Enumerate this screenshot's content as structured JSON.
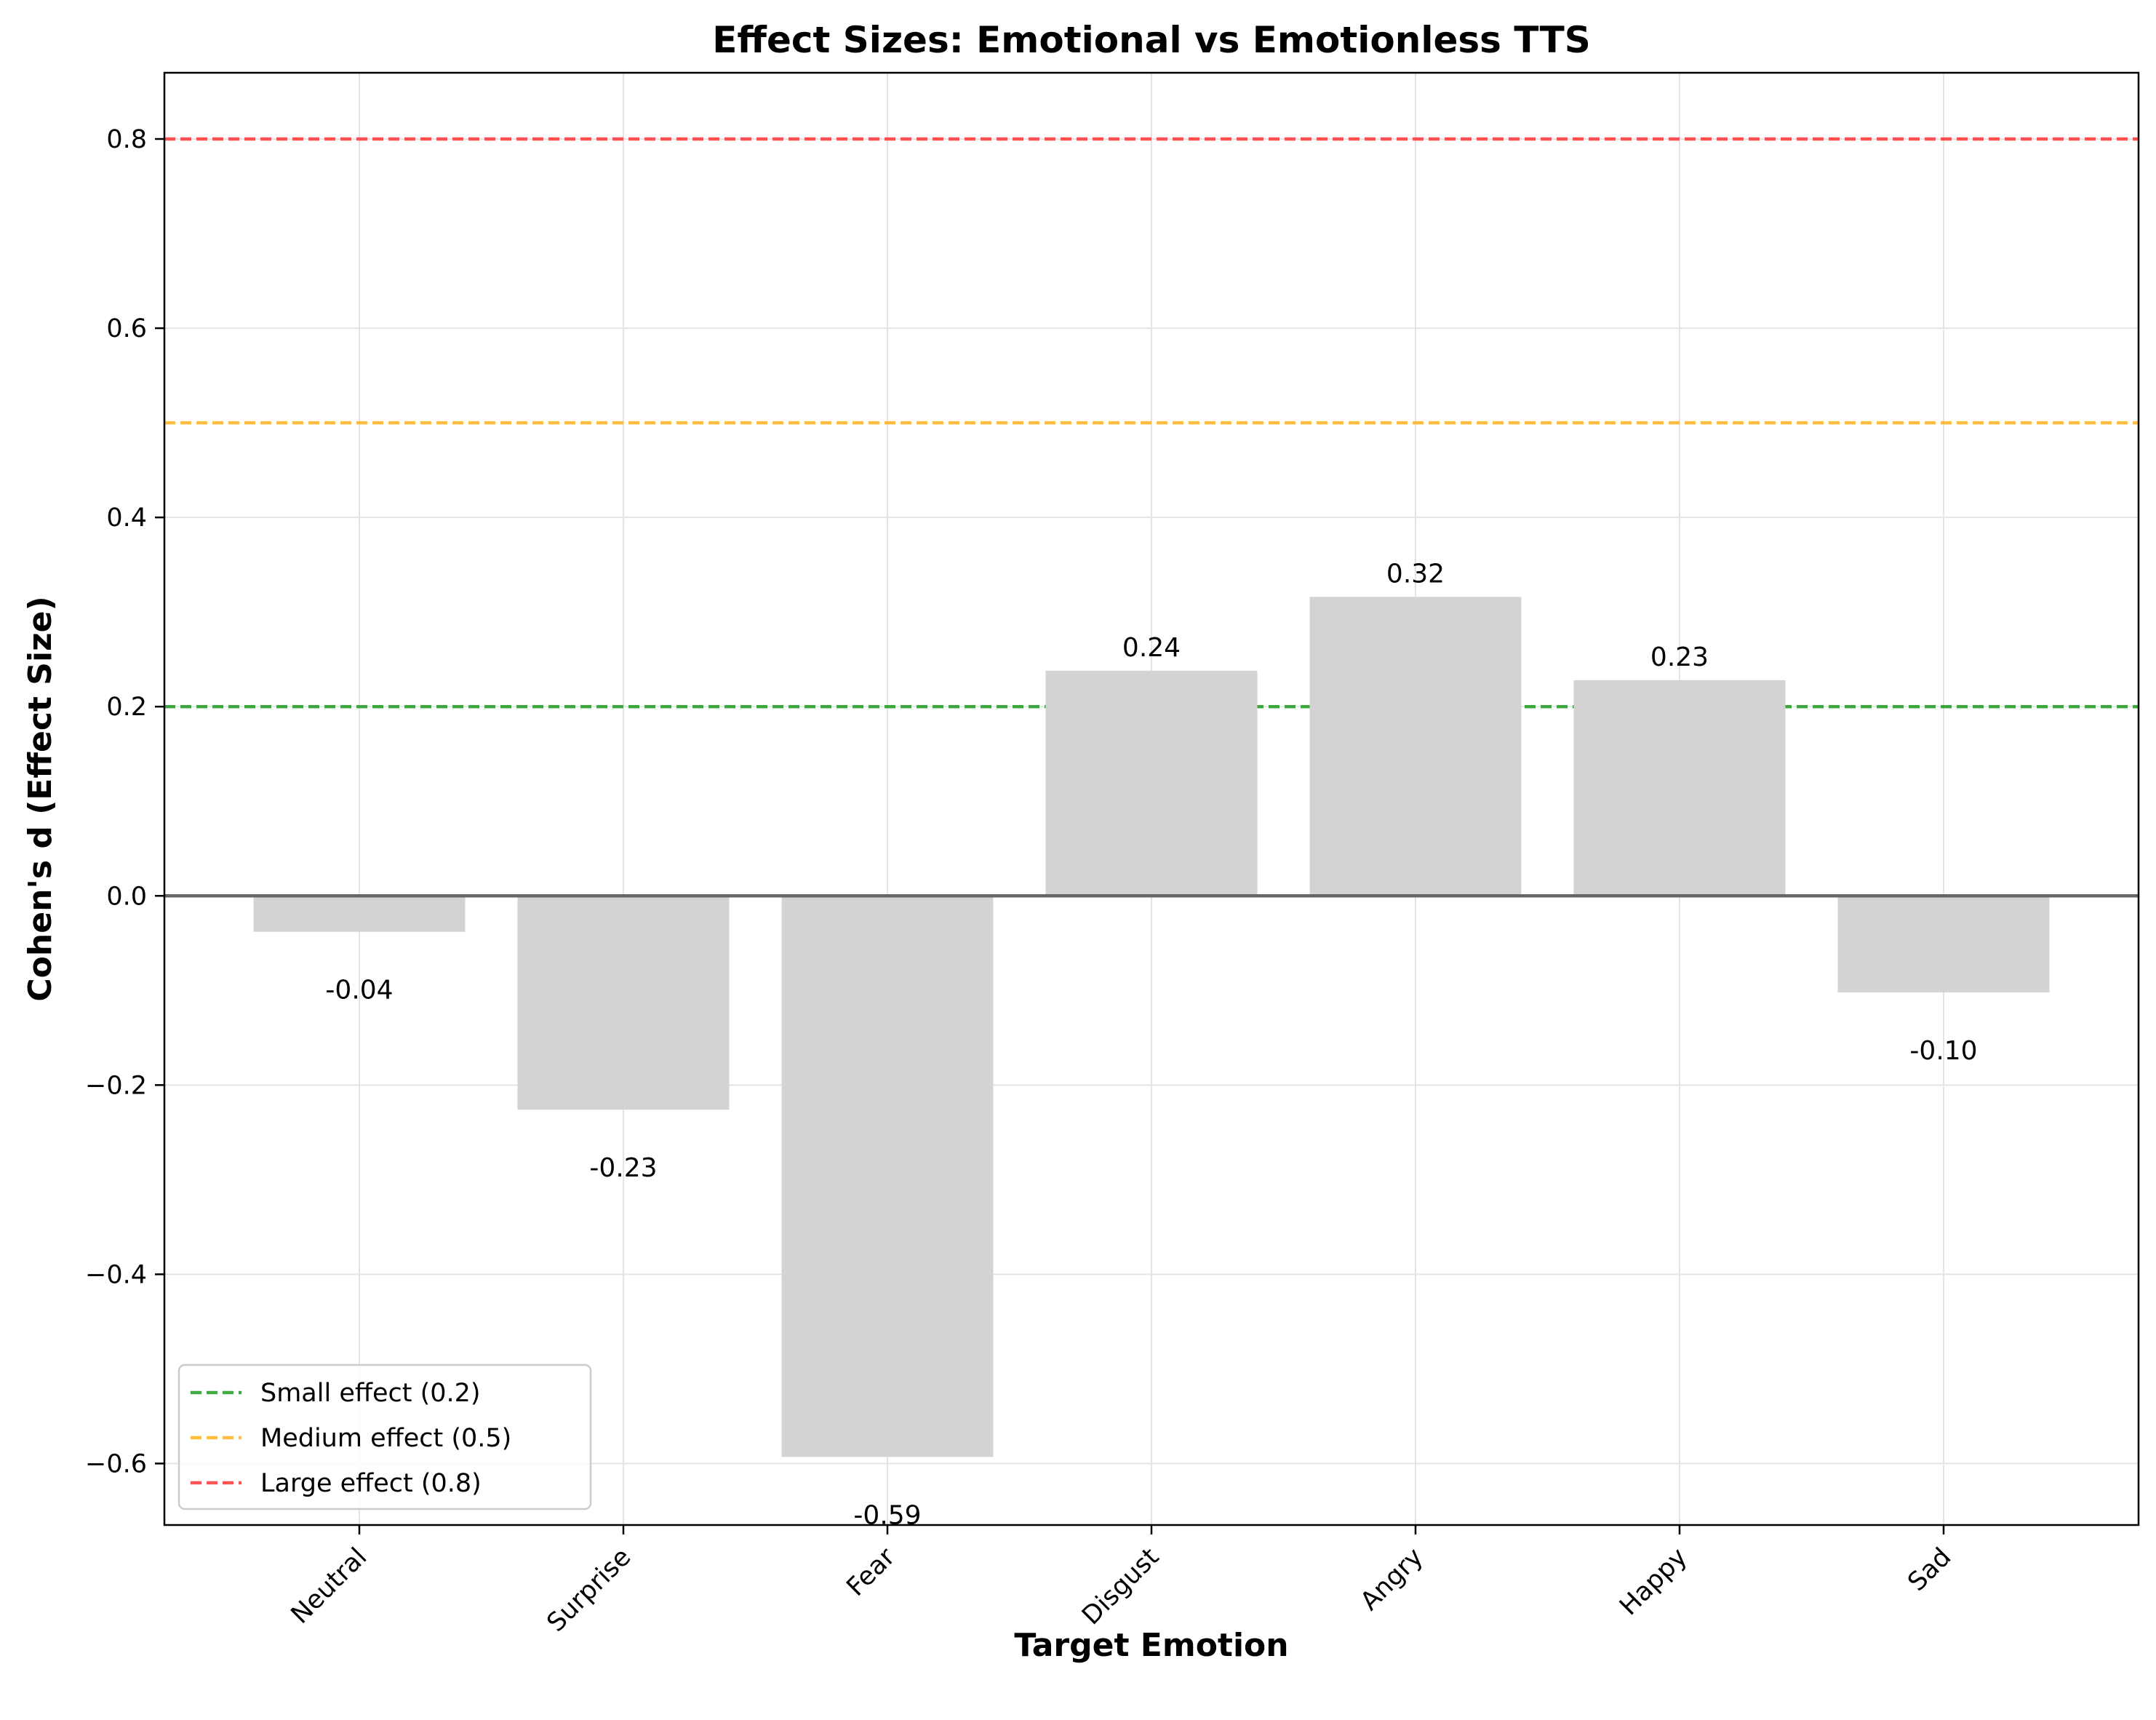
{
  "chart_data": {
    "type": "bar",
    "title": "Effect Sizes: Emotional vs Emotionless TTS",
    "xlabel": "Target Emotion",
    "ylabel": "Cohen's d (Effect Size)",
    "categories": [
      "Neutral",
      "Surprise",
      "Fear",
      "Disgust",
      "Angry",
      "Happy",
      "Sad"
    ],
    "values": [
      -0.038,
      -0.226,
      -0.593,
      0.238,
      0.316,
      0.228,
      -0.102
    ],
    "value_labels": [
      "-0.04",
      "-0.23",
      "-0.59",
      "0.24",
      "0.32",
      "0.23",
      "-0.10"
    ],
    "bar_color": "#d3d3d3",
    "ylim": [
      -0.665,
      0.87
    ],
    "yticks": [
      -0.6,
      -0.4,
      -0.2,
      0.0,
      0.2,
      0.4,
      0.6,
      0.8
    ],
    "ytick_labels": [
      "−0.6",
      "−0.4",
      "−0.2",
      "0.0",
      "0.2",
      "0.4",
      "0.6",
      "0.8"
    ],
    "grid": true,
    "zero_line_color": "#666666",
    "reference_lines": [
      {
        "label": "Small effect (0.2)",
        "value": 0.2,
        "color": "#2ca02c"
      },
      {
        "label": "Medium effect (0.5)",
        "value": 0.5,
        "color": "#ffb52e"
      },
      {
        "label": "Large effect (0.8)",
        "value": 0.8,
        "color": "#ff4040"
      }
    ],
    "legend_position": "lower-left"
  }
}
